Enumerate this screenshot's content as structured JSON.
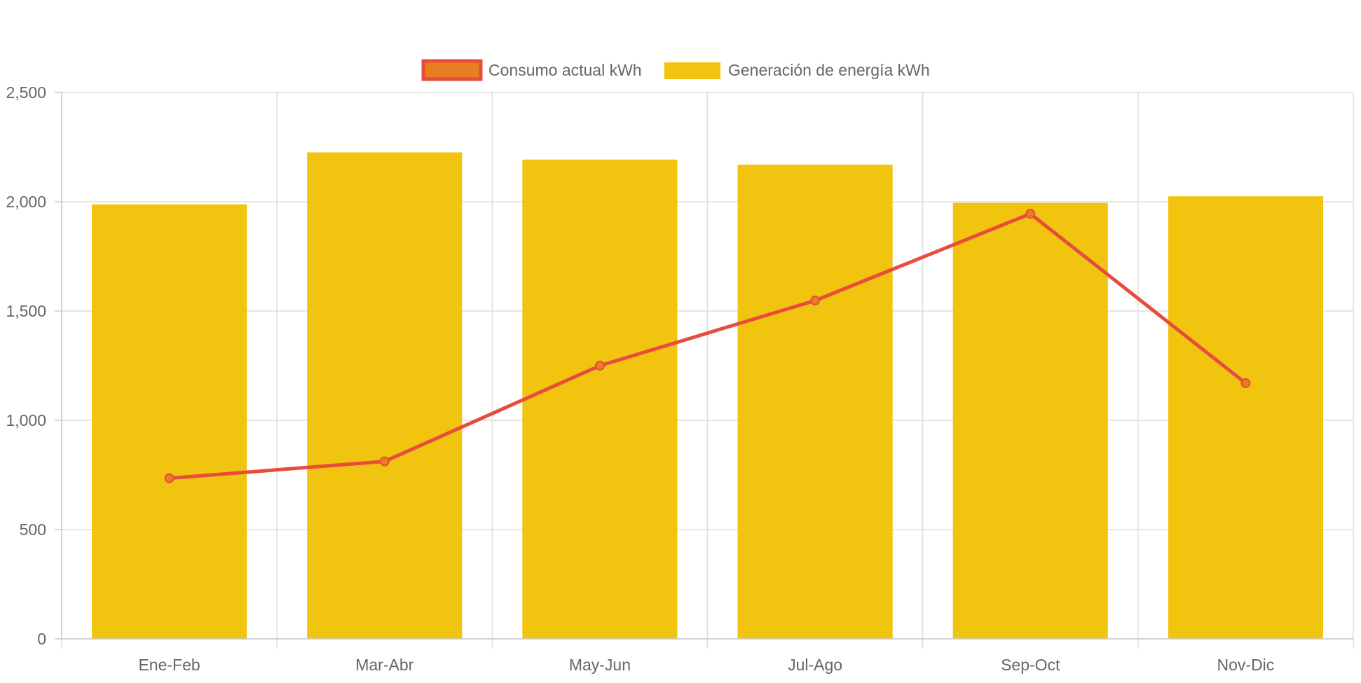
{
  "chart_data": {
    "type": "bar",
    "title": "",
    "xlabel": "",
    "ylabel": "",
    "categories": [
      "Ene-Feb",
      "Mar-Abr",
      "May-Jun",
      "Jul-Ago",
      "Sep-Oct",
      "Nov-Dic"
    ],
    "ylim": [
      0,
      2500
    ],
    "yticks": [
      0,
      500,
      1000,
      1500,
      2000,
      2500
    ],
    "ytick_labels": [
      "0",
      "500",
      "1,000",
      "1,500",
      "2,000",
      "2,500"
    ],
    "grid": true,
    "legend_position": "top-center",
    "series": [
      {
        "name": "Consumo actual kWh",
        "type": "line",
        "color": "#e74c3c",
        "fill": "#e67e22",
        "values": [
          735,
          812,
          1250,
          1548,
          1945,
          1170
        ]
      },
      {
        "name": "Generación de energía kWh",
        "type": "bar",
        "color": "#f1c40f",
        "values": [
          1988,
          2226,
          2193,
          2170,
          1995,
          2025
        ]
      }
    ]
  }
}
